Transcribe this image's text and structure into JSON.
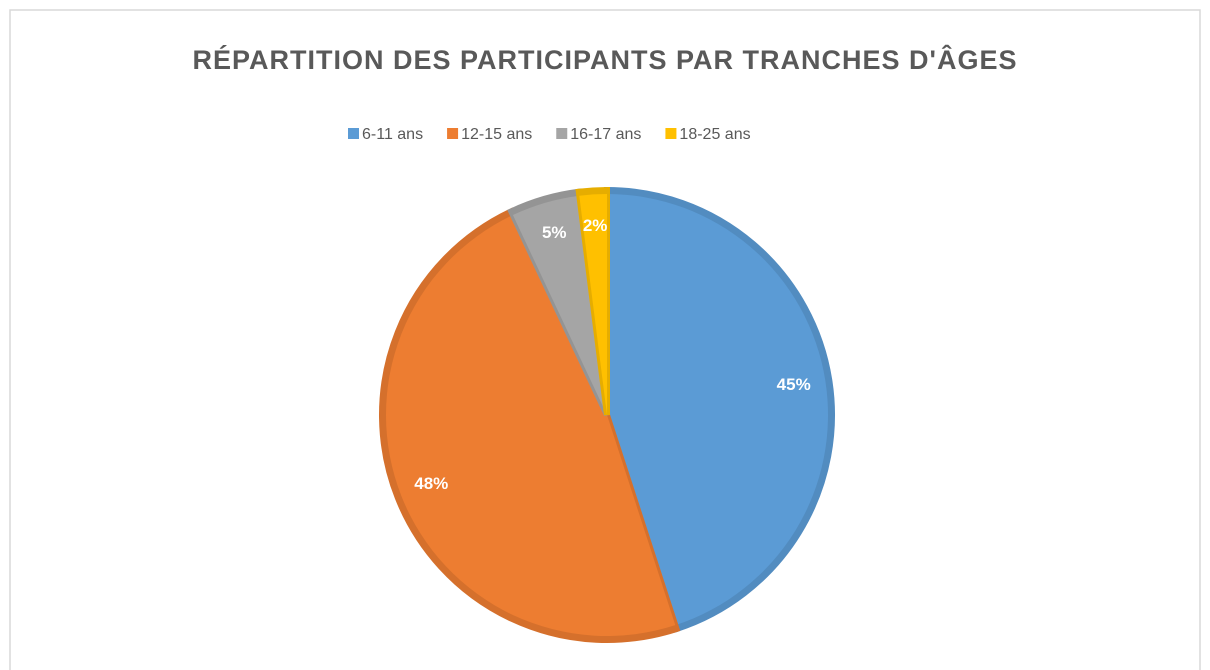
{
  "chart_data": {
    "type": "pie",
    "title": "RÉPARTITION DES PARTICIPANTS PAR TRANCHES D'ÂGES",
    "categories": [
      "6-11 ans",
      "12-15 ans",
      "16-17 ans",
      "18-25 ans"
    ],
    "values": [
      45,
      48,
      5,
      2
    ],
    "value_labels": [
      "45%",
      "48%",
      "5%",
      "2%"
    ],
    "colors": [
      "#5b9bd5",
      "#ed7d31",
      "#a5a5a5",
      "#ffc000"
    ],
    "legend": "top"
  }
}
